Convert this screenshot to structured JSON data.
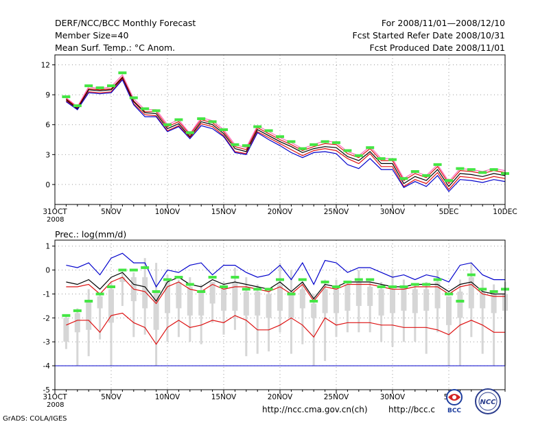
{
  "header": {
    "title": "DERF/NCC/BCC Monthly Forecast",
    "member_size": "Member Size=40",
    "variable": "Mean Surf. Temp.: °C Anom.",
    "period": "For 2008/11/01—2008/12/10",
    "started": "Fcst Started Refer Date 2008/10/31",
    "produced": "Fcst Produced Date 2008/11/01"
  },
  "footer": {
    "grads": "GrADS: COLA/IGES",
    "url1": "http://ncc.cma.gov.cn(ch)",
    "url2": "http://bcc.c",
    "logo_left": "BCC",
    "logo_right": "NCC"
  },
  "colors": {
    "green": "#44e644",
    "blue": "#0000cc",
    "red": "#dd1111",
    "gray": "#d6d6d6",
    "dark": "#000000",
    "pink": "#ff66bb"
  },
  "chart_data": [
    {
      "type": "line",
      "title": "Mean Surf. Temp.: °C Anom.",
      "x": [
        1,
        2,
        3,
        4,
        5,
        6,
        7,
        8,
        9,
        10,
        11,
        12,
        13,
        14,
        15,
        16,
        17,
        18,
        19,
        20,
        21,
        22,
        23,
        24,
        25,
        26,
        27,
        28,
        29,
        30,
        31,
        32,
        33,
        34,
        35,
        36,
        37,
        38,
        39,
        40
      ],
      "xlim": [
        0,
        40
      ],
      "ylim": [
        -2,
        13
      ],
      "yticks": [
        0,
        3,
        6,
        9,
        12
      ],
      "xticks": [
        {
          "x": 0,
          "label": "31OCT",
          "sub": "2008"
        },
        {
          "x": 5,
          "label": "5NOV"
        },
        {
          "x": 10,
          "label": "10NOV"
        },
        {
          "x": 15,
          "label": "15NOV"
        },
        {
          "x": 20,
          "label": "20NOV"
        },
        {
          "x": 25,
          "label": "25NOV"
        },
        {
          "x": 30,
          "label": "30NOV"
        },
        {
          "x": 35,
          "label": "5DEC"
        },
        {
          "x": 40,
          "label": "10DEC"
        }
      ],
      "series": [
        {
          "name": "max",
          "color": "pink",
          "values": [
            8.7,
            7.8,
            9.8,
            9.6,
            9.8,
            11.0,
            8.6,
            7.5,
            7.5,
            6.0,
            6.5,
            5.1,
            6.7,
            6.4,
            5.5,
            4.0,
            3.7,
            5.9,
            5.3,
            4.7,
            4.2,
            3.6,
            4.0,
            4.4,
            4.2,
            3.3,
            2.9,
            3.8,
            2.6,
            2.6,
            0.6,
            1.3,
            0.9,
            2.0,
            0.3,
            1.6,
            1.5,
            1.3,
            1.6,
            1.4
          ]
        },
        {
          "name": "upper",
          "color": "red",
          "values": [
            8.6,
            7.7,
            9.6,
            9.5,
            9.6,
            10.8,
            8.4,
            7.3,
            7.3,
            5.8,
            6.3,
            5.0,
            6.5,
            6.2,
            5.3,
            3.8,
            3.5,
            5.7,
            5.1,
            4.5,
            4.0,
            3.4,
            3.8,
            4.1,
            4.0,
            3.1,
            2.7,
            3.6,
            2.4,
            2.4,
            0.4,
            1.1,
            0.7,
            1.8,
            0.1,
            1.4,
            1.3,
            1.1,
            1.4,
            1.2
          ]
        },
        {
          "name": "mean",
          "color": "dark",
          "values": [
            8.5,
            7.6,
            9.5,
            9.4,
            9.5,
            10.7,
            8.3,
            7.2,
            7.1,
            5.6,
            6.1,
            4.8,
            6.3,
            6.0,
            5.1,
            3.6,
            3.3,
            5.5,
            4.9,
            4.3,
            3.8,
            3.2,
            3.6,
            3.8,
            3.7,
            2.8,
            2.4,
            3.3,
            2.1,
            2.1,
            0.1,
            0.8,
            0.4,
            1.5,
            -0.2,
            1.1,
            1.0,
            0.8,
            1.1,
            0.9
          ]
        },
        {
          "name": "lower",
          "color": "red",
          "values": [
            8.4,
            7.5,
            9.3,
            9.2,
            9.3,
            10.6,
            8.1,
            7.0,
            6.9,
            5.4,
            5.9,
            4.7,
            6.1,
            5.8,
            4.9,
            3.3,
            3.1,
            5.3,
            4.7,
            4.1,
            3.5,
            2.9,
            3.4,
            3.6,
            3.4,
            2.6,
            2.1,
            3.1,
            1.8,
            1.8,
            -0.2,
            0.5,
            0.1,
            1.2,
            -0.5,
            0.8,
            0.7,
            0.5,
            0.8,
            0.6
          ]
        },
        {
          "name": "min",
          "color": "blue",
          "values": [
            8.3,
            7.5,
            9.2,
            9.1,
            9.2,
            10.5,
            8.0,
            6.8,
            6.8,
            5.3,
            5.8,
            4.6,
            5.9,
            5.6,
            4.8,
            3.2,
            3.0,
            5.2,
            4.5,
            3.9,
            3.2,
            2.7,
            3.2,
            3.3,
            3.1,
            2.0,
            1.6,
            2.6,
            1.5,
            1.5,
            -0.3,
            0.3,
            -0.2,
            0.9,
            -0.7,
            0.5,
            0.4,
            0.2,
            0.5,
            0.3
          ]
        }
      ],
      "markers": {
        "name": "observed",
        "color": "green",
        "values": [
          8.8,
          7.9,
          9.9,
          9.7,
          9.9,
          11.2,
          8.7,
          7.6,
          7.4,
          6.0,
          6.5,
          5.2,
          6.6,
          6.3,
          5.5,
          4.0,
          3.9,
          5.8,
          5.4,
          4.8,
          4.3,
          3.6,
          4.0,
          4.3,
          4.2,
          3.4,
          2.9,
          3.7,
          2.6,
          2.5,
          0.6,
          1.3,
          0.9,
          2.0,
          0.4,
          1.6,
          1.5,
          1.2,
          1.5,
          1.1
        ]
      }
    },
    {
      "type": "line",
      "title": "Prec.: log(mm/d)",
      "x": [
        1,
        2,
        3,
        4,
        5,
        6,
        7,
        8,
        9,
        10,
        11,
        12,
        13,
        14,
        15,
        16,
        17,
        18,
        19,
        20,
        21,
        22,
        23,
        24,
        25,
        26,
        27,
        28,
        29,
        30,
        31,
        32,
        33,
        34,
        35,
        36,
        37,
        38,
        39,
        40
      ],
      "xlim": [
        0,
        40
      ],
      "ylim": [
        -5,
        1.25
      ],
      "yticks": [
        -5,
        -4,
        -3,
        -2,
        -1,
        0,
        1
      ],
      "xticks": [
        {
          "x": 0,
          "label": "31OCT",
          "sub": "2008"
        },
        {
          "x": 5,
          "label": "5NOV"
        },
        {
          "x": 10,
          "label": "10NOV"
        },
        {
          "x": 15,
          "label": "15NOV"
        },
        {
          "x": 20,
          "label": "20NOV"
        },
        {
          "x": 25,
          "label": "25NOV"
        },
        {
          "x": 30,
          "label": "30NOV"
        },
        {
          "x": 35,
          "label": "5D"
        }
      ],
      "boxes": {
        "name": "ensemble-range",
        "color": "gray",
        "low": [
          -3.3,
          -4.0,
          -3.6,
          -2.9,
          -4.0,
          -1.5,
          -2.8,
          -2.7,
          -4.0,
          -3.0,
          -2.8,
          -3.0,
          -3.1,
          -2.2,
          -2.7,
          -2.5,
          -3.6,
          -3.5,
          -3.4,
          -2.6,
          -3.5,
          -3.1,
          -4.0,
          -3.8,
          -2.8,
          -2.6,
          -2.6,
          -2.6,
          -3.0,
          -3.2,
          -3.0,
          -3.0,
          -3.5,
          -2.6,
          -4.0,
          -4.0,
          -2.8,
          -3.5,
          -4.0,
          -4.0
        ],
        "high": [
          -1.9,
          -1.6,
          -0.8,
          -1.0,
          -0.5,
          -0.1,
          -0.1,
          0.5,
          0.3,
          -0.2,
          -0.4,
          -0.3,
          -0.6,
          -0.8,
          -0.5,
          0.1,
          -0.3,
          -0.6,
          -0.8,
          0.3,
          0.0,
          -0.5,
          -1.0,
          -0.4,
          -0.4,
          -0.5,
          0.0,
          -0.5,
          -0.5,
          0.0,
          -0.4,
          -0.6,
          -0.5,
          0.0,
          -1.1,
          -0.4,
          0.3,
          -0.4,
          -0.6,
          -0.5
        ],
        "q1": [
          -3.0,
          -2.6,
          -2.5,
          -1.6,
          -2.2,
          -0.5,
          -1.3,
          -1.6,
          -2.5,
          -1.8,
          -1.6,
          -1.9,
          -1.9,
          -1.4,
          -1.7,
          -1.7,
          -1.9,
          -1.9,
          -2.0,
          -1.7,
          -2.0,
          -1.6,
          -2.0,
          -1.8,
          -1.8,
          -1.7,
          -1.5,
          -1.5,
          -1.9,
          -1.8,
          -1.7,
          -1.8,
          -1.7,
          -1.6,
          -2.3,
          -2.0,
          -1.6,
          -1.6,
          -1.8,
          -1.7
        ],
        "q3": [
          -2.0,
          -1.8,
          -1.3,
          -1.1,
          -0.8,
          -0.3,
          -0.3,
          -0.3,
          -0.9,
          -0.5,
          -0.5,
          -0.7,
          -0.9,
          -0.5,
          -0.8,
          -0.5,
          -0.9,
          -0.9,
          -1.0,
          -0.6,
          -0.9,
          -0.8,
          -1.4,
          -0.8,
          -0.8,
          -0.6,
          -0.5,
          -0.7,
          -0.8,
          -0.8,
          -0.7,
          -0.8,
          -0.8,
          -0.5,
          -1.1,
          -0.9,
          -0.3,
          -0.9,
          -1.0,
          -1.0
        ]
      },
      "series": [
        {
          "name": "max",
          "color": "blue",
          "values": [
            0.2,
            0.1,
            0.3,
            -0.2,
            0.5,
            0.7,
            0.3,
            0.3,
            -0.7,
            0.0,
            -0.1,
            0.2,
            0.3,
            -0.2,
            0.2,
            0.2,
            -0.1,
            -0.3,
            -0.2,
            0.2,
            -0.4,
            0.3,
            -0.6,
            0.4,
            0.3,
            -0.1,
            0.1,
            0.1,
            -0.1,
            -0.3,
            -0.2,
            -0.4,
            -0.2,
            -0.3,
            -0.5,
            0.2,
            0.3,
            -0.2,
            -0.4,
            -0.4
          ]
        },
        {
          "name": "upper",
          "color": "red",
          "values": [
            -0.7,
            -0.7,
            -0.6,
            -1.0,
            -0.5,
            -0.3,
            -0.8,
            -0.9,
            -1.4,
            -0.7,
            -0.5,
            -0.8,
            -0.9,
            -0.6,
            -0.8,
            -0.7,
            -0.7,
            -0.8,
            -0.9,
            -0.7,
            -1.0,
            -0.6,
            -1.3,
            -0.7,
            -0.8,
            -0.6,
            -0.6,
            -0.6,
            -0.7,
            -0.8,
            -0.8,
            -0.7,
            -0.7,
            -0.7,
            -1.0,
            -0.7,
            -0.6,
            -1.0,
            -1.1,
            -1.1
          ]
        },
        {
          "name": "mean",
          "color": "dark",
          "values": [
            -0.5,
            -0.6,
            -0.4,
            -0.8,
            -0.3,
            -0.1,
            -0.6,
            -0.7,
            -1.3,
            -0.5,
            -0.3,
            -0.6,
            -0.7,
            -0.4,
            -0.6,
            -0.5,
            -0.6,
            -0.7,
            -0.8,
            -0.5,
            -0.9,
            -0.5,
            -1.2,
            -0.6,
            -0.7,
            -0.5,
            -0.5,
            -0.5,
            -0.6,
            -0.7,
            -0.7,
            -0.6,
            -0.6,
            -0.6,
            -0.9,
            -0.6,
            -0.5,
            -0.9,
            -1.0,
            -1.0
          ]
        },
        {
          "name": "lower",
          "color": "red",
          "values": [
            -2.3,
            -2.1,
            -2.1,
            -2.6,
            -1.9,
            -1.8,
            -2.2,
            -2.4,
            -3.1,
            -2.4,
            -2.1,
            -2.4,
            -2.3,
            -2.1,
            -2.2,
            -1.9,
            -2.1,
            -2.5,
            -2.5,
            -2.3,
            -2.0,
            -2.3,
            -2.8,
            -2.0,
            -2.3,
            -2.2,
            -2.2,
            -2.2,
            -2.3,
            -2.3,
            -2.4,
            -2.4,
            -2.4,
            -2.5,
            -2.7,
            -2.3,
            -2.1,
            -2.3,
            -2.6,
            -2.6
          ]
        }
      ],
      "baseline": {
        "name": "floor",
        "color": "blue",
        "value": -4.0
      },
      "markers": {
        "name": "observed",
        "color": "green",
        "values": [
          -1.9,
          -1.7,
          -1.3,
          -1.0,
          -0.7,
          0.0,
          0.0,
          0.1,
          -0.9,
          -0.4,
          -0.3,
          -0.6,
          -0.9,
          -0.3,
          -0.7,
          -0.3,
          -0.8,
          -0.8,
          -0.8,
          -0.4,
          -1.0,
          -0.4,
          -1.3,
          -0.5,
          -0.7,
          -0.5,
          -0.4,
          -0.4,
          -0.7,
          -0.7,
          -0.7,
          -0.6,
          -0.6,
          -0.4,
          -1.0,
          -1.3,
          -0.2,
          -0.8,
          -0.9,
          -0.8
        ]
      }
    }
  ]
}
